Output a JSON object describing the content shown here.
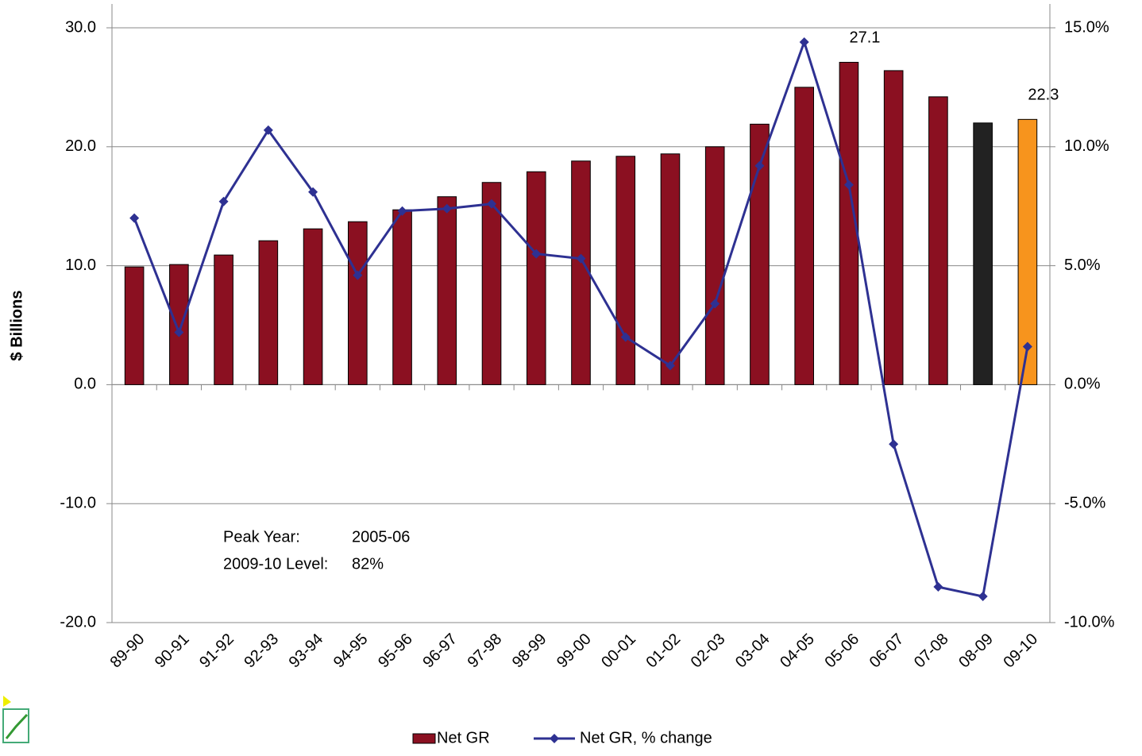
{
  "chart_data": {
    "type": "bar-line",
    "y_label": "$ Billions",
    "categories": [
      "89-90",
      "90-91",
      "91-92",
      "92-93",
      "93-94",
      "94-95",
      "95-96",
      "96-97",
      "97-98",
      "98-99",
      "99-00",
      "00-01",
      "01-02",
      "02-03",
      "03-04",
      "04-05",
      "05-06",
      "06-07",
      "07-08",
      "08-09",
      "09-10"
    ],
    "series": [
      {
        "name": "Net GR",
        "type": "bar",
        "color": "#8b1021",
        "colors": [
          "#8b1021",
          "#8b1021",
          "#8b1021",
          "#8b1021",
          "#8b1021",
          "#8b1021",
          "#8b1021",
          "#8b1021",
          "#8b1021",
          "#8b1021",
          "#8b1021",
          "#8b1021",
          "#8b1021",
          "#8b1021",
          "#8b1021",
          "#8b1021",
          "#8b1021",
          "#8b1021",
          "#8b1021",
          "#222222",
          "#f7941d"
        ],
        "values": [
          9.9,
          10.1,
          10.9,
          12.1,
          13.1,
          13.7,
          14.7,
          15.8,
          17.0,
          17.9,
          18.8,
          19.2,
          19.4,
          20.0,
          21.9,
          25.0,
          27.1,
          26.4,
          24.2,
          22.0,
          22.3
        ],
        "value_labels": [
          null,
          null,
          null,
          null,
          null,
          null,
          null,
          null,
          null,
          null,
          null,
          null,
          null,
          null,
          null,
          null,
          "27.1",
          null,
          null,
          null,
          "22.3"
        ]
      },
      {
        "name": "Net GR, % change",
        "type": "line",
        "axis": "y2",
        "color": "#2e3192",
        "values": [
          7.0,
          2.2,
          7.7,
          10.7,
          8.1,
          4.6,
          7.3,
          7.4,
          7.6,
          5.5,
          5.3,
          2.0,
          0.8,
          3.4,
          9.2,
          14.4,
          8.4,
          -2.5,
          -8.5,
          -8.9,
          1.6
        ]
      }
    ],
    "ylim": [
      -20,
      30
    ],
    "yticks": [
      {
        "value": -20,
        "label": "-20.0"
      },
      {
        "value": -10,
        "label": "-10.0"
      },
      {
        "value": 0,
        "label": "0.0"
      },
      {
        "value": 10,
        "label": "10.0"
      },
      {
        "value": 20,
        "label": "20.0"
      },
      {
        "value": 30,
        "label": "30.0"
      }
    ],
    "y2lim": [
      -10,
      15
    ],
    "y2ticks": [
      {
        "value": -10,
        "label": "-10.0%"
      },
      {
        "value": -5,
        "label": "-5.0%"
      },
      {
        "value": 0,
        "label": "0.0%"
      },
      {
        "value": 5,
        "label": "5.0%"
      },
      {
        "value": 10,
        "label": "10.0%"
      },
      {
        "value": 15,
        "label": "15.0%"
      }
    ],
    "grid": true,
    "legend": "bottom",
    "annotations": [
      [
        "Peak Year:",
        "2005-06"
      ],
      [
        "2009-10 Level:",
        "82%"
      ]
    ]
  }
}
